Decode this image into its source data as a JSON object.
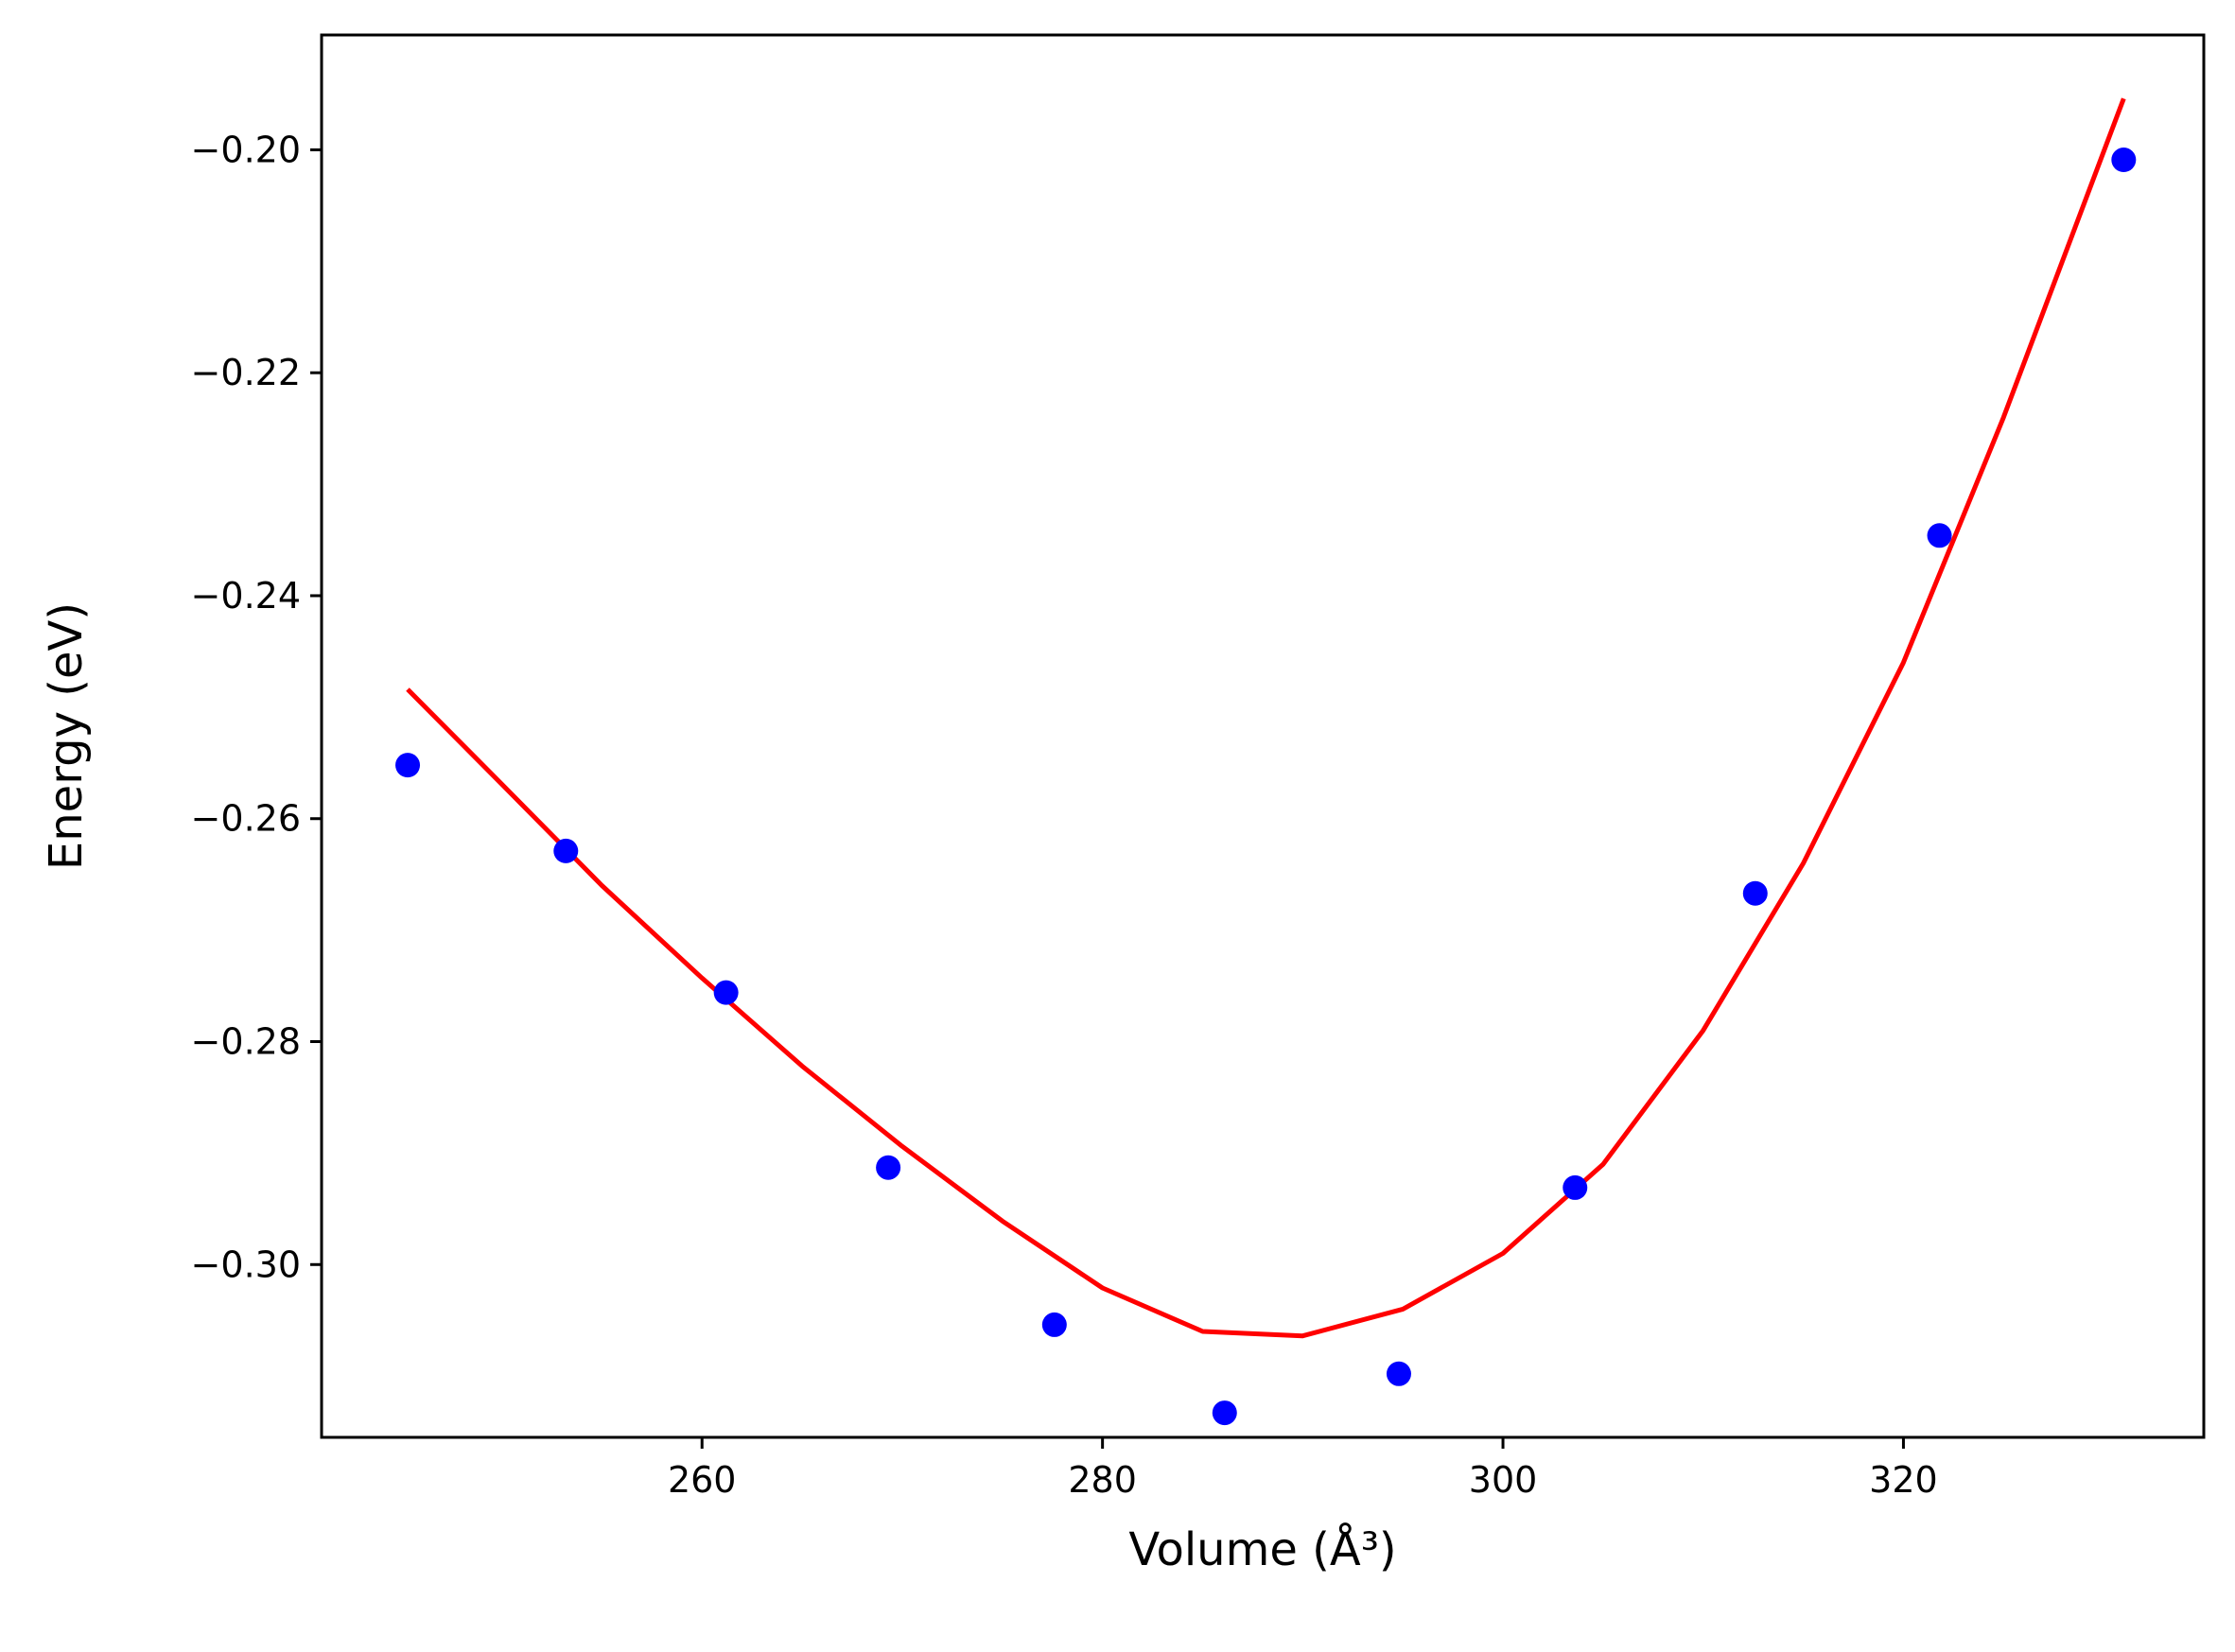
{
  "chart_data": {
    "type": "scatter",
    "xlabel": "Volume (Å³)",
    "ylabel": "Energy (eV)",
    "xlim": [
      241,
      335
    ],
    "ylim": [
      -0.3155,
      -0.1897
    ],
    "xticks": [
      260,
      280,
      300,
      320
    ],
    "yticks": [
      -0.2,
      -0.22,
      -0.24,
      -0.26,
      -0.28,
      -0.3
    ],
    "xtick_labels": [
      "260",
      "280",
      "300",
      "320"
    ],
    "ytick_labels": [
      "−0.20",
      "−0.22",
      "−0.24",
      "−0.26",
      "−0.28",
      "−0.30"
    ],
    "grid": false,
    "series": [
      {
        "kind": "points",
        "color": "#0000ff",
        "x": [
          245.3,
          253.2,
          261.2,
          269.3,
          277.6,
          286.1,
          294.8,
          303.6,
          312.6,
          321.8,
          331.0
        ],
        "y": [
          -0.2552,
          -0.2629,
          -0.2756,
          -0.2913,
          -0.3054,
          -0.3133,
          -0.3098,
          -0.2931,
          -0.2667,
          -0.2346,
          -0.2009
        ]
      },
      {
        "kind": "fit-curve",
        "color": "#ff0000",
        "x": [
          245.3,
          250,
          255,
          260,
          265,
          270,
          275,
          280,
          285,
          290,
          295,
          300,
          305,
          310,
          315,
          320,
          325,
          331.0
        ],
        "y": [
          -0.2484,
          -0.2569,
          -0.266,
          -0.2743,
          -0.2822,
          -0.2894,
          -0.2961,
          -0.3021,
          -0.306,
          -0.3064,
          -0.304,
          -0.299,
          -0.291,
          -0.279,
          -0.264,
          -0.246,
          -0.224,
          -0.1954
        ]
      }
    ]
  }
}
